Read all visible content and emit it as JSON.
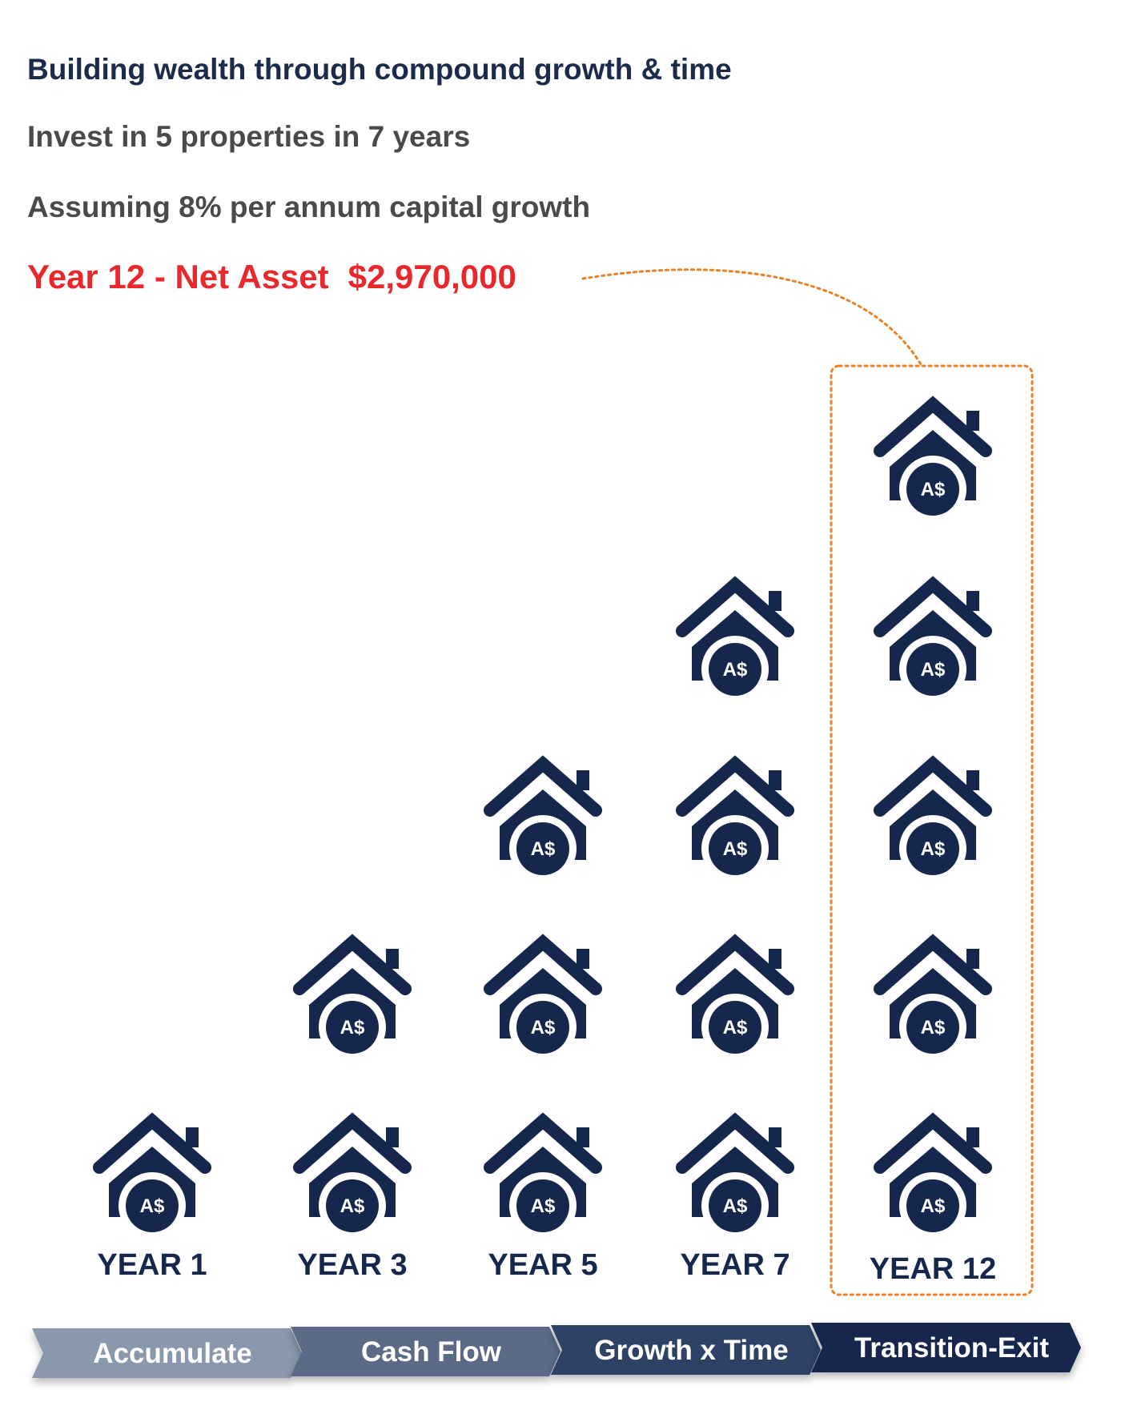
{
  "header": {
    "title": "Building wealth through compound growth & time",
    "line1": "Invest in 5 properties in 7 years",
    "line2": "Assuming 8% per annum capital growth",
    "highlight_label": "Year 12 - Net Asset",
    "highlight_value": "$2,970,000"
  },
  "house_badge": "A$",
  "house_icon": "house-dollar-icon",
  "columns": [
    {
      "label": "YEAR 1",
      "houses": 1
    },
    {
      "label": "YEAR 3",
      "houses": 2
    },
    {
      "label": "YEAR 5",
      "houses": 3
    },
    {
      "label": "YEAR 7",
      "houses": 4
    },
    {
      "label": "YEAR 12",
      "houses": 5,
      "highlighted": true
    }
  ],
  "stages": [
    {
      "label": "Accumulate",
      "color": "#8998ad"
    },
    {
      "label": "Cash Flow",
      "color": "#5a6b87"
    },
    {
      "label": "Growth x Time",
      "color": "#2e4266"
    },
    {
      "label": "Transition-Exit",
      "color": "#15274d"
    }
  ],
  "colors": {
    "navy": "#15274d",
    "highlight_red": "#e8282b",
    "dotted_orange": "#ef7d22"
  }
}
